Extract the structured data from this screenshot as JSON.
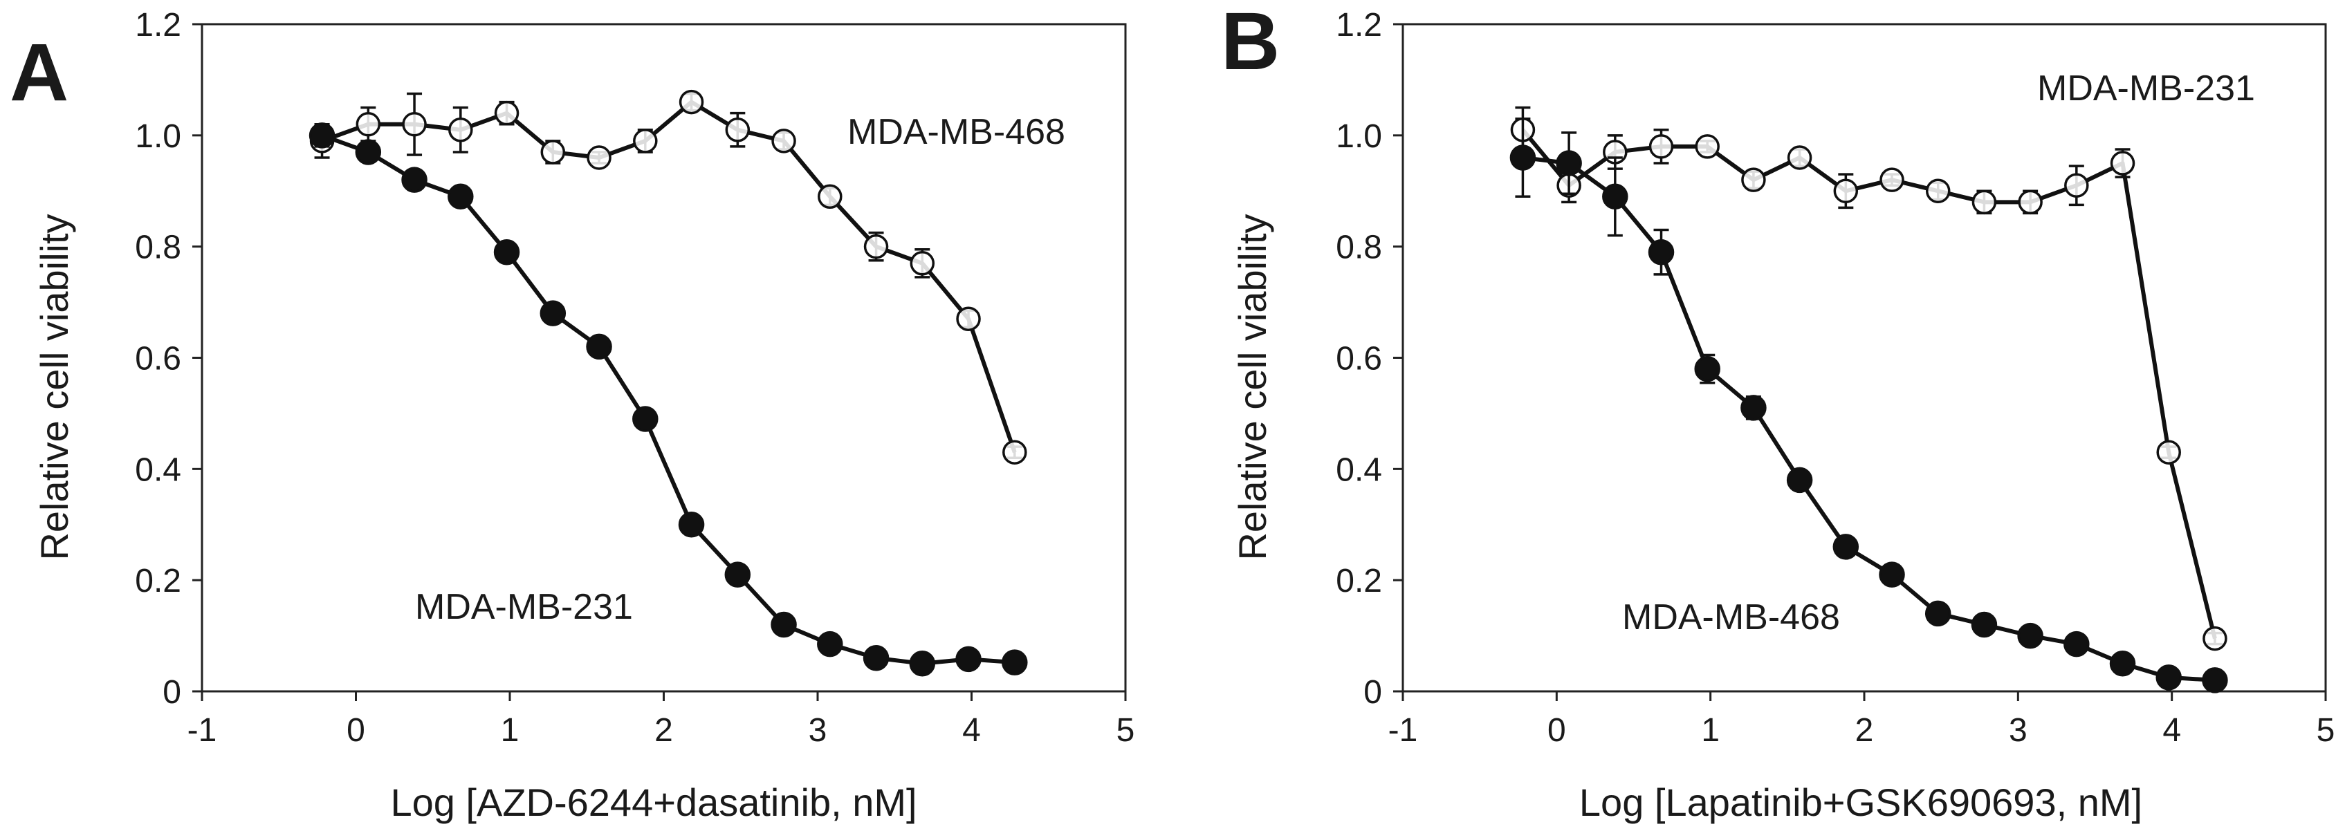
{
  "chart_data": [
    {
      "panel_label": "A",
      "type": "line",
      "xlabel": "Log [AZD-6244+dasatinib, nM]",
      "ylabel": "Relative cell viability",
      "xlim": [
        -1,
        5
      ],
      "ylim": [
        0,
        1.2
      ],
      "xticks": [
        "-1",
        "0",
        "1",
        "2",
        "3",
        "4",
        "5"
      ],
      "yticks": [
        "0",
        "0.2",
        "0.4",
        "0.6",
        "0.8",
        "1.0",
        "1.2"
      ],
      "series": [
        {
          "name": "MDA-MB-468",
          "marker": "open-circle",
          "annotation": "MDA-MB-468",
          "points": [
            {
              "x": -0.22,
              "y": 0.99,
              "err": 0.03
            },
            {
              "x": 0.08,
              "y": 1.02,
              "err": 0.03
            },
            {
              "x": 0.38,
              "y": 1.02,
              "err": 0.055
            },
            {
              "x": 0.68,
              "y": 1.01,
              "err": 0.04
            },
            {
              "x": 0.98,
              "y": 1.04,
              "err": 0.02
            },
            {
              "x": 1.28,
              "y": 0.97,
              "err": 0.02
            },
            {
              "x": 1.58,
              "y": 0.96,
              "err": 0.01
            },
            {
              "x": 1.88,
              "y": 0.99,
              "err": 0.02
            },
            {
              "x": 2.18,
              "y": 1.06,
              "err": 0.015
            },
            {
              "x": 2.48,
              "y": 1.01,
              "err": 0.03
            },
            {
              "x": 2.78,
              "y": 0.99,
              "err": 0.015
            },
            {
              "x": 3.08,
              "y": 0.89,
              "err": 0.015
            },
            {
              "x": 3.38,
              "y": 0.8,
              "err": 0.025
            },
            {
              "x": 3.68,
              "y": 0.77,
              "err": 0.025
            },
            {
              "x": 3.98,
              "y": 0.67,
              "err": 0.015
            },
            {
              "x": 4.28,
              "y": 0.43,
              "err": 0.01
            }
          ]
        },
        {
          "name": "MDA-MB-231",
          "marker": "filled-circle",
          "annotation": "MDA-MB-231",
          "points": [
            {
              "x": -0.22,
              "y": 1.0,
              "err": 0.02
            },
            {
              "x": 0.08,
              "y": 0.97,
              "err": 0.01
            },
            {
              "x": 0.38,
              "y": 0.92,
              "err": 0.01
            },
            {
              "x": 0.68,
              "y": 0.89,
              "err": 0.01
            },
            {
              "x": 0.98,
              "y": 0.79,
              "err": 0.01
            },
            {
              "x": 1.28,
              "y": 0.68,
              "err": 0.01
            },
            {
              "x": 1.58,
              "y": 0.62,
              "err": 0.01
            },
            {
              "x": 1.88,
              "y": 0.49,
              "err": 0.01
            },
            {
              "x": 2.18,
              "y": 0.3,
              "err": 0.01
            },
            {
              "x": 2.48,
              "y": 0.21,
              "err": 0.01
            },
            {
              "x": 2.78,
              "y": 0.12,
              "err": 0.01
            },
            {
              "x": 3.08,
              "y": 0.085,
              "err": 0.01
            },
            {
              "x": 3.38,
              "y": 0.06,
              "err": 0.01
            },
            {
              "x": 3.68,
              "y": 0.05,
              "err": 0.01
            },
            {
              "x": 3.98,
              "y": 0.058,
              "err": 0.01
            },
            {
              "x": 4.28,
              "y": 0.052,
              "err": 0.01
            }
          ]
        }
      ]
    },
    {
      "panel_label": "B",
      "type": "line",
      "xlabel": "Log [Lapatinib+GSK690693, nM]",
      "ylabel": "Relative cell viability",
      "xlim": [
        -1,
        5
      ],
      "ylim": [
        0,
        1.2
      ],
      "xticks": [
        "-1",
        "0",
        "1",
        "2",
        "3",
        "4",
        "5"
      ],
      "yticks": [
        "0",
        "0.2",
        "0.4",
        "0.6",
        "0.8",
        "1.0",
        "1.2"
      ],
      "series": [
        {
          "name": "MDA-MB-231",
          "marker": "open-circle",
          "annotation": "MDA-MB-231",
          "points": [
            {
              "x": -0.22,
              "y": 1.01,
              "err": 0.04
            },
            {
              "x": 0.08,
              "y": 0.91,
              "err": 0.03
            },
            {
              "x": 0.38,
              "y": 0.97,
              "err": 0.03
            },
            {
              "x": 0.68,
              "y": 0.98,
              "err": 0.03
            },
            {
              "x": 0.98,
              "y": 0.98,
              "err": 0.01
            },
            {
              "x": 1.28,
              "y": 0.92,
              "err": 0.015
            },
            {
              "x": 1.58,
              "y": 0.96,
              "err": 0.015
            },
            {
              "x": 1.88,
              "y": 0.9,
              "err": 0.03
            },
            {
              "x": 2.18,
              "y": 0.92,
              "err": 0.01
            },
            {
              "x": 2.48,
              "y": 0.9,
              "err": 0.015
            },
            {
              "x": 2.78,
              "y": 0.88,
              "err": 0.02
            },
            {
              "x": 3.08,
              "y": 0.88,
              "err": 0.02
            },
            {
              "x": 3.38,
              "y": 0.91,
              "err": 0.035
            },
            {
              "x": 3.68,
              "y": 0.95,
              "err": 0.025
            },
            {
              "x": 3.98,
              "y": 0.43,
              "err": 0.01
            },
            {
              "x": 4.28,
              "y": 0.095,
              "err": 0.01
            }
          ]
        },
        {
          "name": "MDA-MB-468",
          "marker": "filled-circle",
          "annotation": "MDA-MB-468",
          "points": [
            {
              "x": -0.22,
              "y": 0.96,
              "err": 0.07
            },
            {
              "x": 0.08,
              "y": 0.95,
              "err": 0.055
            },
            {
              "x": 0.38,
              "y": 0.89,
              "err": 0.07
            },
            {
              "x": 0.68,
              "y": 0.79,
              "err": 0.04
            },
            {
              "x": 0.98,
              "y": 0.58,
              "err": 0.025
            },
            {
              "x": 1.28,
              "y": 0.51,
              "err": 0.02
            },
            {
              "x": 1.58,
              "y": 0.38,
              "err": 0.01
            },
            {
              "x": 1.88,
              "y": 0.26,
              "err": 0.01
            },
            {
              "x": 2.18,
              "y": 0.21,
              "err": 0.01
            },
            {
              "x": 2.48,
              "y": 0.14,
              "err": 0.01
            },
            {
              "x": 2.78,
              "y": 0.12,
              "err": 0.01
            },
            {
              "x": 3.08,
              "y": 0.1,
              "err": 0.01
            },
            {
              "x": 3.38,
              "y": 0.085,
              "err": 0.01
            },
            {
              "x": 3.68,
              "y": 0.05,
              "err": 0.01
            },
            {
              "x": 3.98,
              "y": 0.025,
              "err": 0.01
            },
            {
              "x": 4.28,
              "y": 0.02,
              "err": 0.01
            }
          ]
        }
      ]
    }
  ]
}
